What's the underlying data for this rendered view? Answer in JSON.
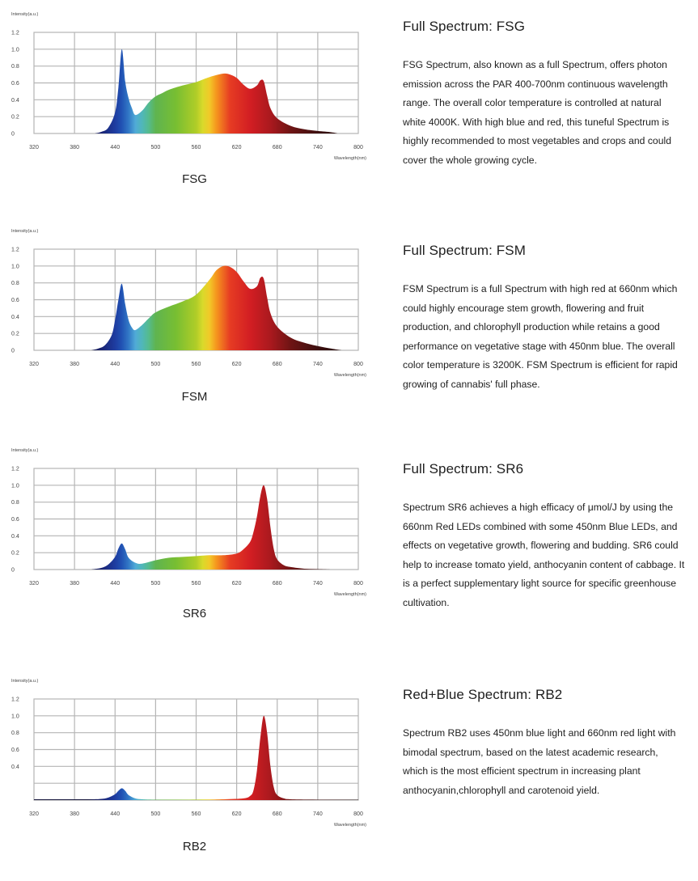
{
  "palette": {
    "grid": "#b5b5b5",
    "axis_text": "#444444"
  },
  "chart_data": [
    {
      "type": "area",
      "id": "fsg",
      "caption": "FSG",
      "ylabel": "Intensity(a.u.)",
      "xlabel": "Wavelength(nm)",
      "xlim": [
        320,
        800
      ],
      "ylim": [
        0,
        1.2
      ],
      "xticks": [
        "320",
        "380",
        "440",
        "500",
        "560",
        "620",
        "680",
        "740",
        "800"
      ],
      "yticks": [
        "0",
        "0.2",
        "0.4",
        "0.6",
        "0.8",
        "1.0",
        "1.2"
      ],
      "x": [
        410,
        420,
        430,
        440,
        445,
        450,
        455,
        460,
        465,
        470,
        480,
        490,
        500,
        510,
        520,
        540,
        560,
        580,
        600,
        610,
        620,
        630,
        640,
        650,
        655,
        660,
        665,
        670,
        680,
        700,
        720,
        740,
        760,
        770
      ],
      "y": [
        0,
        0.02,
        0.07,
        0.25,
        0.55,
        1.0,
        0.62,
        0.42,
        0.3,
        0.22,
        0.27,
        0.37,
        0.44,
        0.48,
        0.52,
        0.57,
        0.61,
        0.67,
        0.71,
        0.7,
        0.66,
        0.58,
        0.53,
        0.57,
        0.63,
        0.62,
        0.45,
        0.3,
        0.18,
        0.09,
        0.05,
        0.03,
        0.015,
        0
      ]
    },
    {
      "type": "area",
      "id": "fsm",
      "caption": "FSM",
      "ylabel": "Intensity(a.u.)",
      "xlabel": "Wavelength(nm)",
      "xlim": [
        320,
        800
      ],
      "ylim": [
        0,
        1.2
      ],
      "xticks": [
        "320",
        "380",
        "440",
        "500",
        "560",
        "620",
        "680",
        "740",
        "800"
      ],
      "yticks": [
        "0",
        "0.2",
        "0.4",
        "0.6",
        "0.8",
        "1.0",
        "1.2"
      ],
      "x": [
        405,
        415,
        425,
        435,
        440,
        445,
        450,
        455,
        460,
        465,
        470,
        480,
        490,
        500,
        520,
        540,
        560,
        580,
        590,
        600,
        610,
        620,
        630,
        640,
        650,
        655,
        660,
        665,
        670,
        680,
        700,
        720,
        740,
        760,
        775
      ],
      "y": [
        0,
        0.02,
        0.06,
        0.18,
        0.36,
        0.6,
        0.79,
        0.55,
        0.36,
        0.27,
        0.24,
        0.3,
        0.38,
        0.45,
        0.52,
        0.58,
        0.66,
        0.84,
        0.95,
        1.0,
        0.99,
        0.93,
        0.82,
        0.73,
        0.76,
        0.86,
        0.85,
        0.63,
        0.44,
        0.28,
        0.15,
        0.09,
        0.05,
        0.02,
        0
      ]
    },
    {
      "type": "area",
      "id": "sr6",
      "caption": "SR6",
      "ylabel": "Intensity(a.u.)",
      "xlabel": "Wavelength(nm)",
      "xlim": [
        320,
        800
      ],
      "ylim": [
        0,
        1.2
      ],
      "xticks": [
        "320",
        "380",
        "440",
        "500",
        "560",
        "620",
        "680",
        "740",
        "800"
      ],
      "yticks": [
        "0",
        "0.2",
        "0.4",
        "0.6",
        "0.8",
        "1.0",
        "1.2"
      ],
      "x": [
        405,
        420,
        430,
        440,
        445,
        450,
        455,
        460,
        470,
        480,
        500,
        520,
        540,
        560,
        580,
        600,
        620,
        630,
        640,
        645,
        650,
        655,
        660,
        665,
        670,
        675,
        680,
        690,
        700,
        720,
        740,
        760
      ],
      "y": [
        0,
        0.02,
        0.06,
        0.15,
        0.25,
        0.31,
        0.24,
        0.14,
        0.08,
        0.07,
        0.11,
        0.14,
        0.15,
        0.16,
        0.17,
        0.17,
        0.19,
        0.24,
        0.33,
        0.45,
        0.63,
        0.87,
        1.0,
        0.84,
        0.5,
        0.24,
        0.12,
        0.05,
        0.03,
        0.01,
        0.005,
        0
      ]
    },
    {
      "type": "area",
      "id": "rb2",
      "caption": "RB2",
      "ylabel": "Intensity(a.u.)",
      "xlabel": "Wavelength(nm)",
      "xlim": [
        320,
        800
      ],
      "ylim": [
        0,
        1.2
      ],
      "xticks": [
        "320",
        "380",
        "440",
        "500",
        "560",
        "620",
        "680",
        "740",
        "800"
      ],
      "yticks": [
        "0.4",
        "0.6",
        "0.8",
        "1.0",
        "1.2"
      ],
      "x": [
        320,
        400,
        420,
        430,
        440,
        445,
        450,
        455,
        460,
        470,
        480,
        500,
        550,
        600,
        630,
        640,
        645,
        650,
        655,
        660,
        665,
        670,
        675,
        680,
        690,
        700,
        740,
        800
      ],
      "y": [
        0.01,
        0.01,
        0.015,
        0.03,
        0.07,
        0.11,
        0.14,
        0.11,
        0.06,
        0.02,
        0.01,
        0.005,
        0.005,
        0.01,
        0.02,
        0.05,
        0.12,
        0.35,
        0.74,
        1.0,
        0.8,
        0.4,
        0.15,
        0.06,
        0.02,
        0.01,
        0.005,
        0.005
      ]
    }
  ],
  "sections": [
    {
      "title": "Full Spectrum: FSG",
      "text": "FSG Spectrum, also known as a full Spectrum, offers photon emission across the PAR 400-700nm continuous wavelength range. The overall color temperature is controlled at natural white 4000K. With high blue and red, this tuneful Spectrum is highly recommended to most vegetables and crops and could cover the whole growing cycle."
    },
    {
      "title": "Full Spectrum: FSM",
      "text": "FSM Spectrum is a full Spectrum with high red at 660nm which could highly encourage stem growth, flowering and fruit production, and chlorophyll production while retains a good performance on vegetative stage with 450nm blue. The overall color temperature is 3200K. FSM Spectrum is efficient for rapid growing of cannabis' full phase."
    },
    {
      "title": "Full Spectrum: SR6",
      "text": "Spectrum SR6 achieves a high efficacy of μmol/J by using the 660nm Red LEDs combined with some 450nm Blue LEDs, and effects on vegetative growth, flowering and budding. SR6 could help to increase tomato yield, anthocyanin content of cabbage. It is a perfect supplementary light source for specific greenhouse cultivation."
    },
    {
      "title": "Red+Blue Spectrum: RB2",
      "text": "Spectrum RB2 uses 450nm blue light and 660nm red light with bimodal spectrum, based on the latest academic research, which is the most efficient spectrum in increasing plant anthocyanin,chlorophyll and carotenoid yield."
    }
  ]
}
